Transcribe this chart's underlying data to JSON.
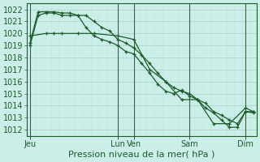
{
  "background_color": "#cceee8",
  "grid_color_major": "#aad4cc",
  "grid_color_minor": "#c0e4de",
  "line_color": "#1a5c2a",
  "xlabel": "Pression niveau de la mer( hPa )",
  "xlabel_fontsize": 8,
  "tick_fontsize": 7,
  "ylim": [
    1011.5,
    1022.5
  ],
  "yticks": [
    1012,
    1013,
    1014,
    1015,
    1016,
    1017,
    1018,
    1019,
    1020,
    1021,
    1022
  ],
  "xlim": [
    -0.2,
    14.2
  ],
  "x_day_positions": [
    0.0,
    5.5,
    6.5,
    10.0,
    13.5
  ],
  "x_day_labels": [
    "Jeu",
    "Lun",
    "Ven",
    "Sam",
    "Dim"
  ],
  "x_vline_positions": [
    0.0,
    5.5,
    6.5,
    10.0,
    13.5
  ],
  "series1_x": [
    0.0,
    0.5,
    1.0,
    1.5,
    2.0,
    2.5,
    3.0,
    3.5,
    4.0,
    4.5,
    5.0,
    5.5,
    6.0,
    6.5,
    7.0,
    7.5,
    8.0,
    8.5,
    9.0,
    9.5,
    10.0,
    10.5,
    11.0,
    11.5,
    12.0,
    12.5,
    13.0,
    13.5,
    14.0
  ],
  "series1_y": [
    1019.0,
    1021.5,
    1021.7,
    1021.7,
    1021.5,
    1021.5,
    1021.5,
    1021.5,
    1021.0,
    1020.5,
    1020.2,
    1019.5,
    1019.2,
    1018.8,
    1018.2,
    1017.5,
    1016.7,
    1016.0,
    1015.5,
    1015.2,
    1015.0,
    1014.5,
    1014.2,
    1013.5,
    1013.2,
    1012.8,
    1012.5,
    1013.5,
    1013.4
  ],
  "series2_x": [
    0.0,
    0.5,
    1.0,
    1.5,
    2.0,
    2.5,
    3.0,
    3.5,
    4.0,
    4.5,
    5.0,
    5.5,
    6.0,
    6.5,
    7.0,
    7.5,
    8.0,
    8.5,
    9.0,
    9.5,
    10.0,
    10.5,
    11.0,
    11.5,
    12.0,
    12.5,
    13.0,
    13.5,
    14.0
  ],
  "series2_y": [
    1019.2,
    1021.8,
    1021.8,
    1021.8,
    1021.7,
    1021.7,
    1021.5,
    1020.5,
    1019.8,
    1019.5,
    1019.3,
    1019.0,
    1018.5,
    1018.3,
    1017.5,
    1016.7,
    1015.8,
    1015.2,
    1015.0,
    1015.3,
    1014.8,
    1014.5,
    1013.8,
    1013.4,
    1012.8,
    1012.2,
    1012.2,
    1013.5,
    1013.5
  ],
  "series3_x": [
    0.0,
    1.0,
    1.5,
    2.0,
    3.0,
    4.0,
    5.5,
    6.5,
    7.5,
    8.5,
    9.5,
    10.5,
    11.5,
    12.5,
    13.5,
    14.0
  ],
  "series3_y": [
    1019.8,
    1020.0,
    1020.0,
    1020.0,
    1020.0,
    1020.0,
    1019.8,
    1019.5,
    1017.0,
    1016.0,
    1014.5,
    1014.5,
    1012.5,
    1012.5,
    1013.8,
    1013.5
  ]
}
